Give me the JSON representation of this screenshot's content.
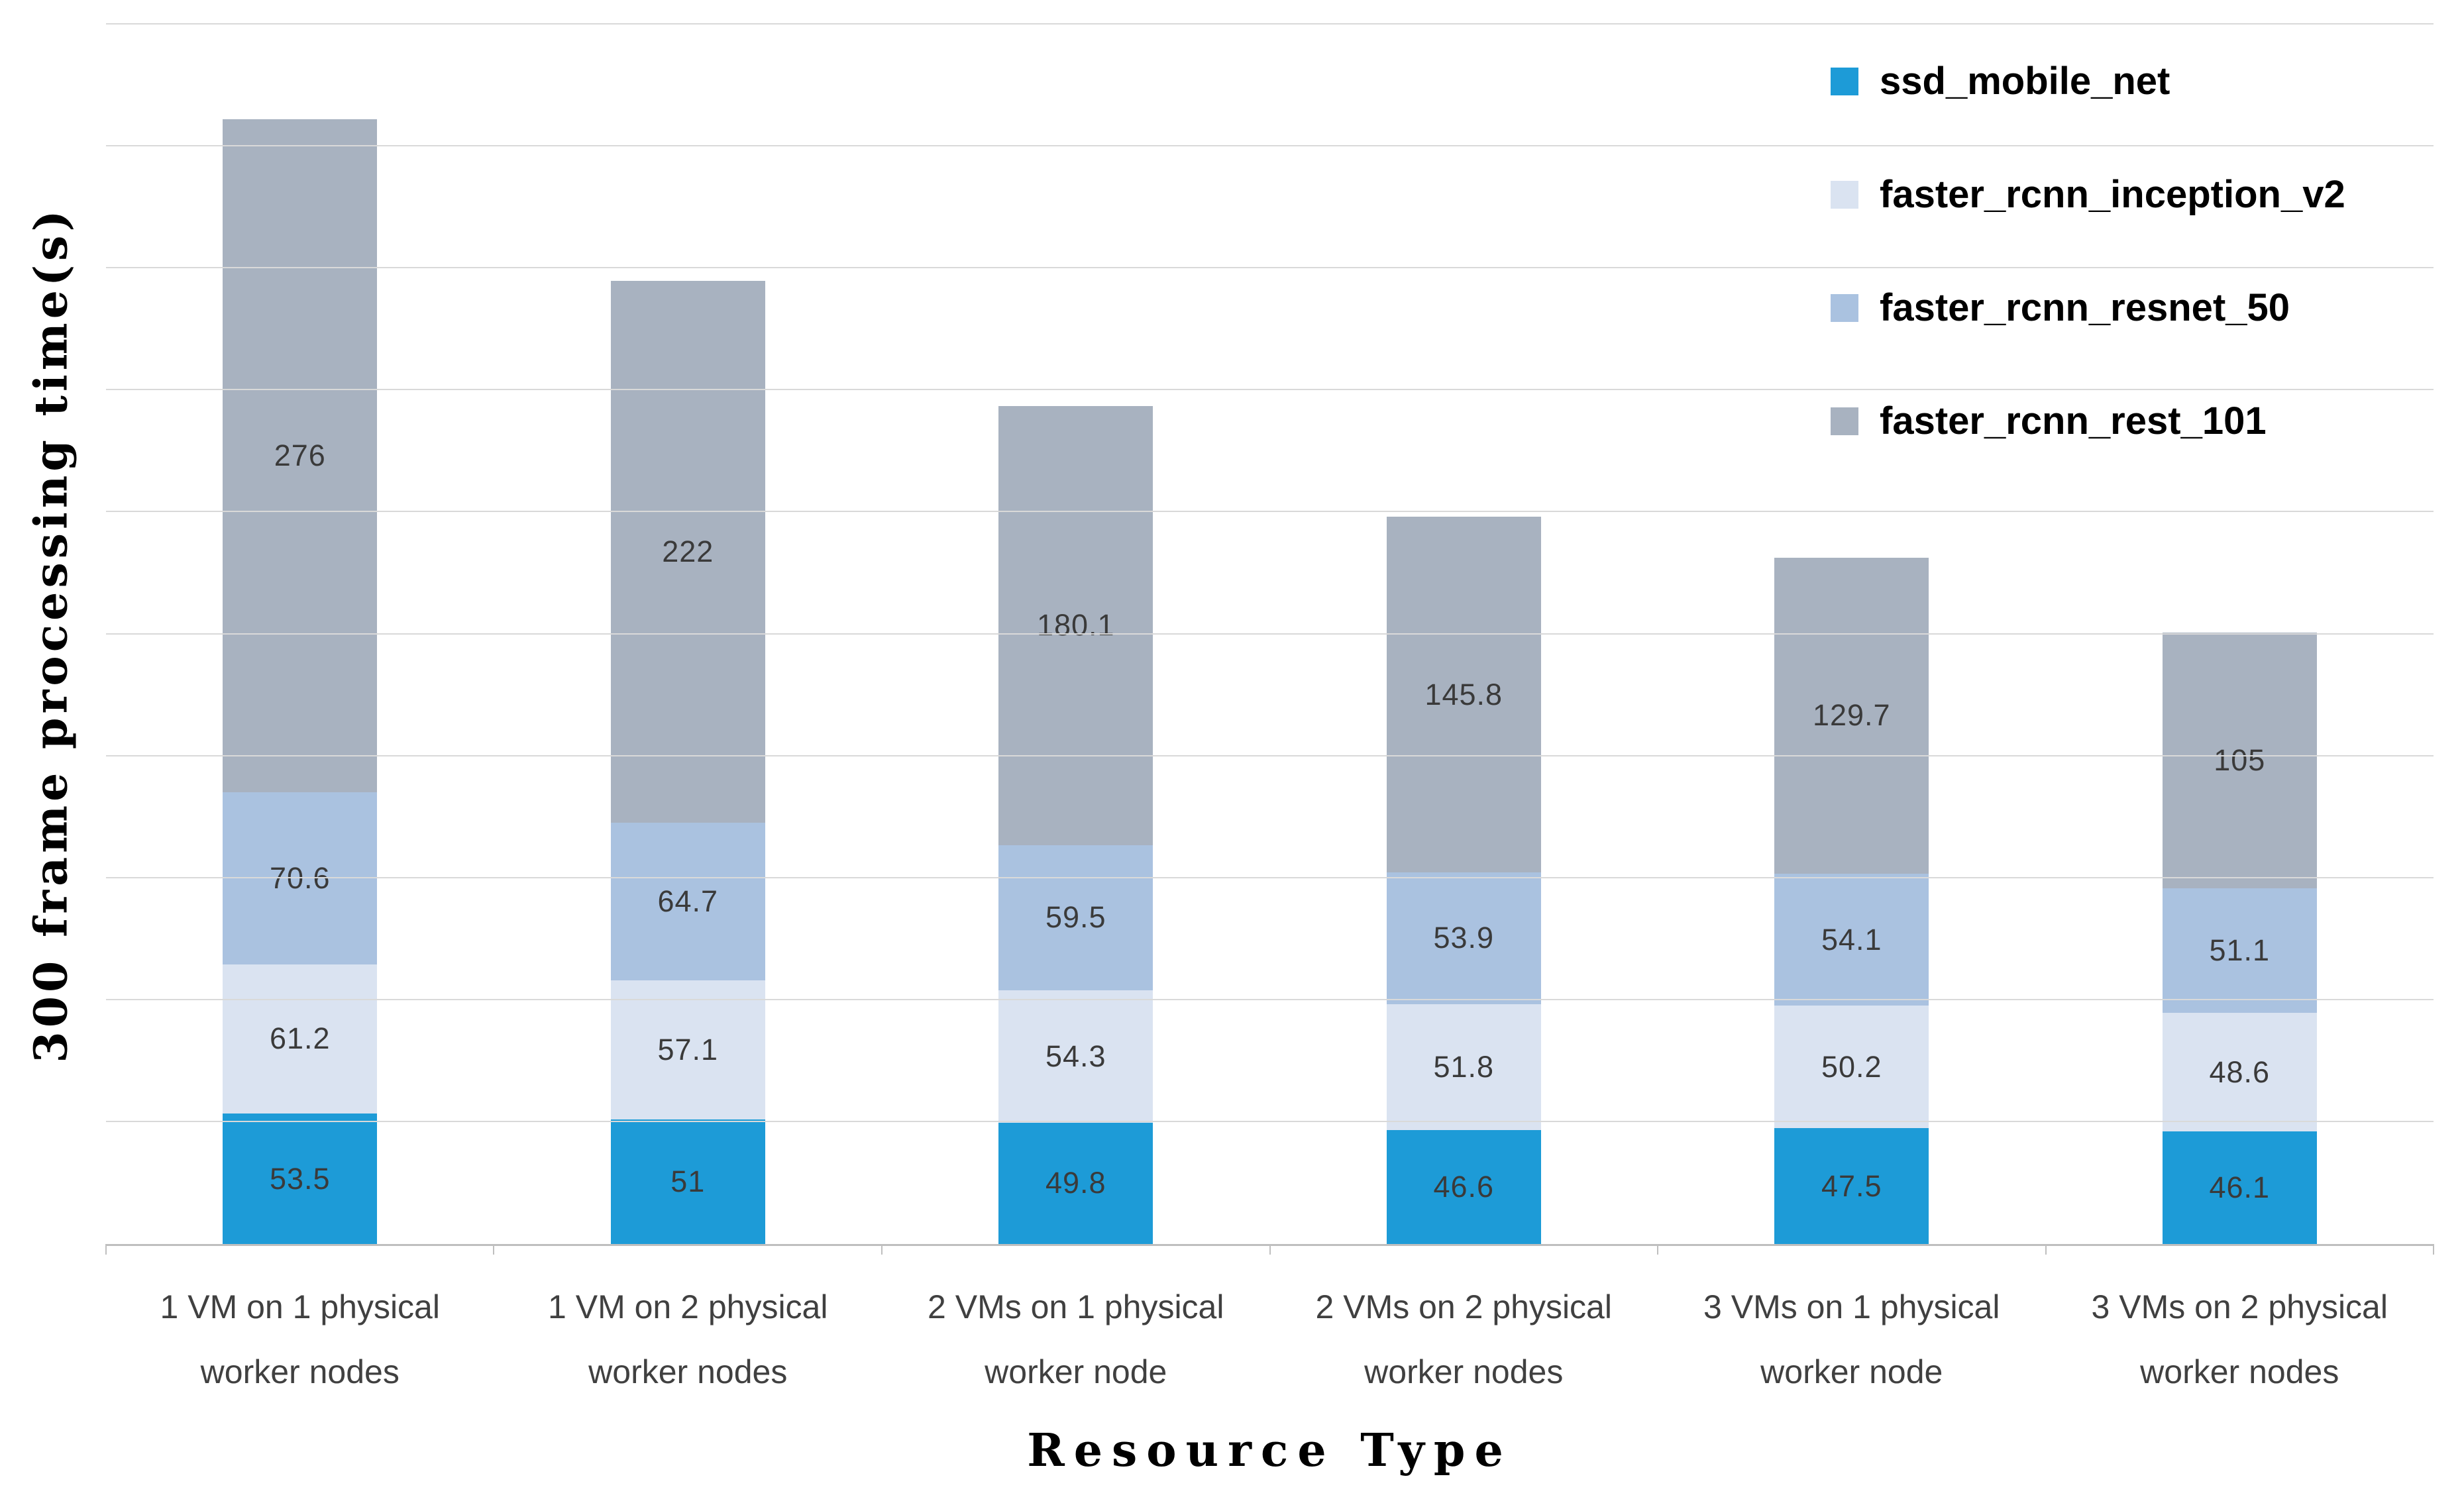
{
  "chart_data": {
    "type": "bar",
    "stacked": true,
    "xlabel": "Resource Type",
    "ylabel": "300 frame processing time(s)",
    "ylim": [
      0,
      500
    ],
    "grid_step": 50,
    "grid": true,
    "legend_position": "top-right",
    "categories": [
      "1 VM on 1 physical worker nodes",
      "1 VM on 2 physical worker nodes",
      "2 VMs on 1 physical worker node",
      "2 VMs on 2 physical worker nodes",
      "3 VMs on 1 physical worker node",
      "3 VMs on 2 physical worker nodes"
    ],
    "series": [
      {
        "name": "ssd_mobile_net",
        "color": "#1d9bd7",
        "values": [
          53.5,
          51,
          49.8,
          46.6,
          47.5,
          46.1
        ]
      },
      {
        "name": "faster_rcnn_inception_v2",
        "color": "#dae3f1",
        "values": [
          61.2,
          57.1,
          54.3,
          51.8,
          50.2,
          48.6
        ]
      },
      {
        "name": "faster_rcnn_resnet_50",
        "color": "#aac2e0",
        "values": [
          70.6,
          64.7,
          59.5,
          53.9,
          54.1,
          51.1
        ]
      },
      {
        "name": "faster_rcnn_rest_101",
        "color": "#a8b2c0",
        "values": [
          276,
          222,
          180.1,
          145.8,
          129.7,
          105
        ]
      }
    ],
    "colors": {
      "gridline": "#d9d9d9",
      "axis_line": "#bfbfbf",
      "value_label_text": "#3a3a3a",
      "category_label_text": "#404040",
      "title_text": "#000000"
    }
  }
}
